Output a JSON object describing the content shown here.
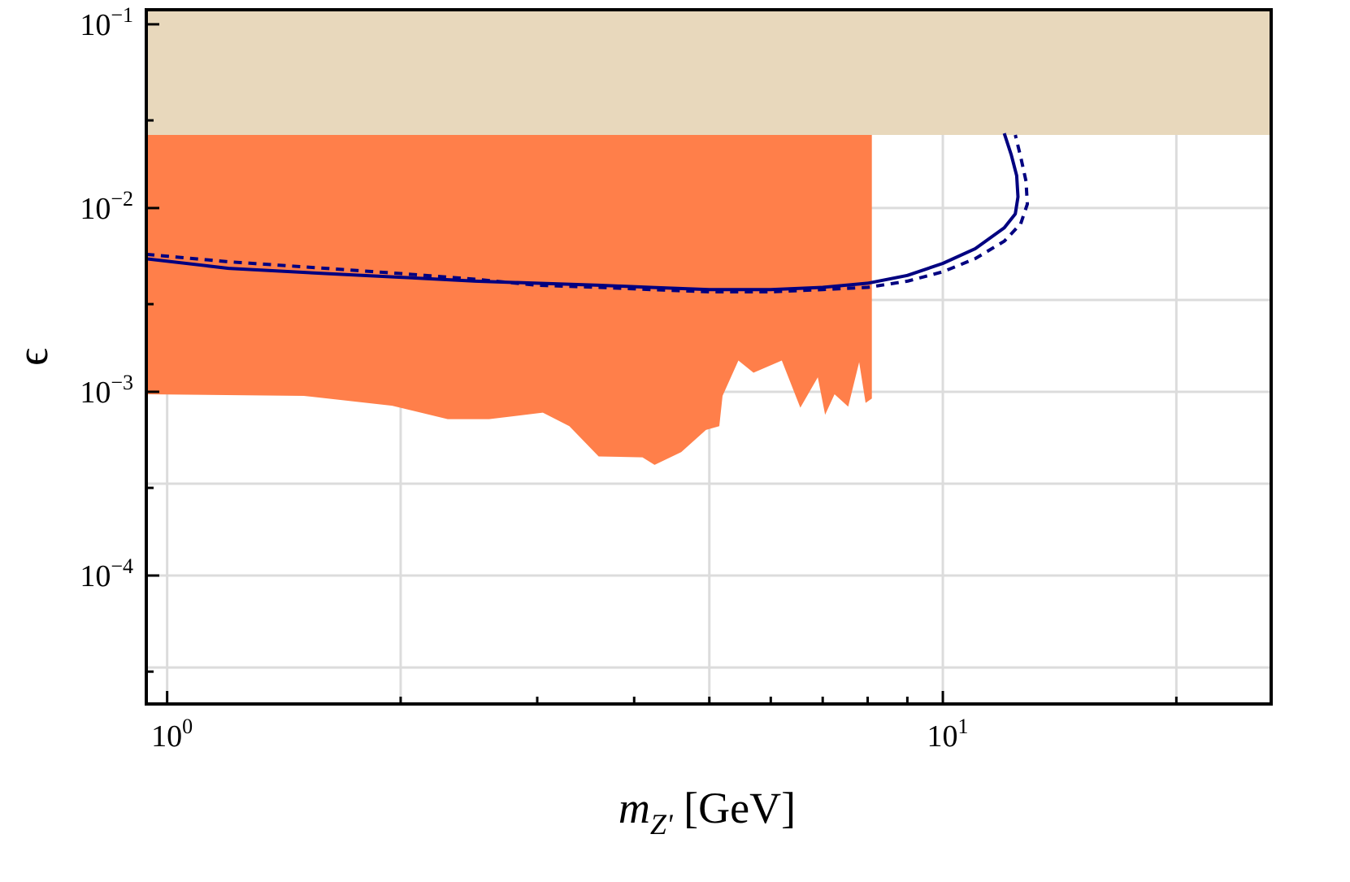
{
  "chart_data": {
    "type": "line",
    "title": "",
    "xlabel": {
      "main": "m",
      "sub": "Z'",
      "unit": " [GeV]"
    },
    "ylabel": "ϵ",
    "xscale": "log",
    "yscale": "log",
    "xlim": [
      0.94,
      26.5
    ],
    "ylim": [
      2e-05,
      0.12
    ],
    "grid": true,
    "legend": "none",
    "x_ticks": [
      {
        "value": 1,
        "base": "10",
        "exp": "0"
      },
      {
        "value": 10,
        "base": "10",
        "exp": "1"
      }
    ],
    "y_ticks": [
      {
        "value": 0.1,
        "base": "10",
        "exp": "−1"
      },
      {
        "value": 0.01,
        "base": "10",
        "exp": "−2"
      },
      {
        "value": 0.001,
        "base": "10",
        "exp": "−3"
      },
      {
        "value": 0.0001,
        "base": "10",
        "exp": "−4"
      }
    ],
    "x_grid": [
      1,
      2,
      5,
      10,
      20
    ],
    "y_grid": [
      0.1,
      0.0316,
      0.01,
      0.00316,
      0.001,
      0.000316,
      0.0001,
      3.16e-05
    ],
    "x_minor_ticks": [
      2,
      3,
      4,
      5,
      6,
      7,
      8,
      9,
      20
    ],
    "y_minor_ticks": [
      0.03,
      0.003,
      0.0003,
      3e-05
    ],
    "regions": [
      {
        "fill": "#e8d8bc",
        "points": [
          [
            0.94,
            0.12
          ],
          [
            26.5,
            0.12
          ],
          [
            26.5,
            0.025
          ],
          [
            0.94,
            0.025
          ]
        ]
      },
      {
        "fill": "#ff7f4a",
        "points": [
          [
            0.94,
            0.025
          ],
          [
            8.1,
            0.025
          ],
          [
            8.1,
            0.00092
          ],
          [
            7.95,
            0.00087
          ],
          [
            7.8,
            0.00145
          ],
          [
            7.55,
            0.00083
          ],
          [
            7.25,
            0.00097
          ],
          [
            7.05,
            0.00075
          ],
          [
            6.9,
            0.0012
          ],
          [
            6.55,
            0.00082
          ],
          [
            6.2,
            0.00148
          ],
          [
            5.7,
            0.00127
          ],
          [
            5.45,
            0.00148
          ],
          [
            5.2,
            0.00095
          ],
          [
            5.15,
            0.00065
          ],
          [
            4.95,
            0.00062
          ],
          [
            4.6,
            0.00047
          ],
          [
            4.25,
            0.0004
          ],
          [
            4.1,
            0.00044
          ],
          [
            3.6,
            0.000445
          ],
          [
            3.3,
            0.00065
          ],
          [
            3.05,
            0.00077
          ],
          [
            2.6,
            0.00071
          ],
          [
            2.3,
            0.00071
          ],
          [
            1.95,
            0.00084
          ],
          [
            1.5,
            0.00095
          ],
          [
            0.94,
            0.00097
          ]
        ]
      }
    ],
    "series": [
      {
        "style": "solid",
        "color": "#000080",
        "x": [
          0.94,
          1.2,
          1.6,
          2.0,
          2.5,
          3.0,
          3.6,
          4.2,
          5.0,
          6.0,
          7.0,
          8.0,
          9.0,
          10.0,
          11.0,
          12.0,
          12.4,
          12.5,
          12.45,
          12.25,
          12.0
        ],
        "y": [
          0.0053,
          0.0047,
          0.0044,
          0.0042,
          0.004,
          0.0039,
          0.0038,
          0.0037,
          0.0036,
          0.0036,
          0.0037,
          0.0039,
          0.0043,
          0.005,
          0.006,
          0.0078,
          0.0093,
          0.0115,
          0.015,
          0.0195,
          0.0255
        ]
      },
      {
        "style": "dashed",
        "color": "#000080",
        "x": [
          0.94,
          1.2,
          1.6,
          2.0,
          2.5,
          3.0,
          3.6,
          4.2,
          5.0,
          6.0,
          7.0,
          8.0,
          9.0,
          10.0,
          11.0,
          12.0,
          12.6,
          12.85,
          12.8,
          12.6,
          12.4
        ],
        "y": [
          0.0056,
          0.0051,
          0.0047,
          0.0044,
          0.0041,
          0.0038,
          0.0037,
          0.0036,
          0.0035,
          0.0035,
          0.0036,
          0.0037,
          0.004,
          0.0045,
          0.0053,
          0.0066,
          0.0082,
          0.0105,
          0.014,
          0.019,
          0.025
        ]
      }
    ]
  }
}
